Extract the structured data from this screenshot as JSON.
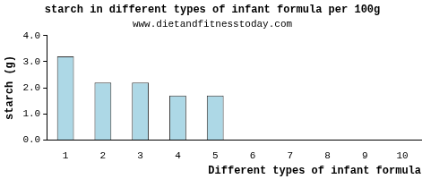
{
  "chart_data": {
    "type": "bar",
    "title": "starch in different types of infant formula per 100g",
    "subtitle": "www.dietandfitnesstoday.com",
    "x_label": "Different types of infant formula",
    "y_label": "starch (g)",
    "categories": [
      "1",
      "2",
      "3",
      "4",
      "5",
      "6",
      "7",
      "8",
      "9",
      "10"
    ],
    "values": [
      3.2,
      2.2,
      2.2,
      1.7,
      1.7,
      0,
      0,
      0,
      0,
      0
    ],
    "color": "#add8e6",
    "ylim": [
      0,
      4
    ],
    "yticks": [
      {
        "value": 0,
        "label": "0.0"
      },
      {
        "value": 1,
        "label": "1.0"
      },
      {
        "value": 2,
        "label": "2.0"
      },
      {
        "value": 3,
        "label": "3.0"
      },
      {
        "value": 4,
        "label": "4.0"
      }
    ],
    "grid": false
  }
}
